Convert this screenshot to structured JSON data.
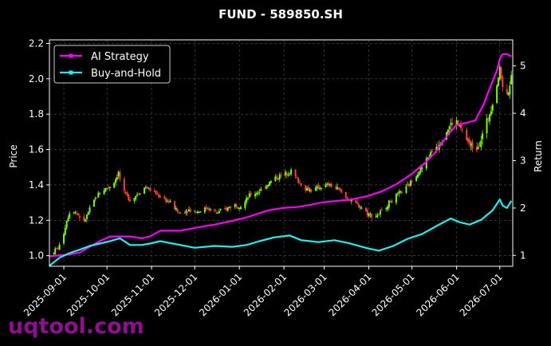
{
  "chart_data": {
    "type": "line",
    "title": "FUND - 589850.SH",
    "ylabel": "Price",
    "y2label": "Return",
    "ylim": [
      0.94,
      2.22
    ],
    "y2lim": [
      0.77,
      5.55
    ],
    "yticks": [
      "1.0",
      "1.2",
      "1.4",
      "1.6",
      "1.8",
      "2.0",
      "2.2"
    ],
    "y2ticks": [
      "1",
      "2",
      "3",
      "4",
      "5"
    ],
    "xlim": [
      "2025-08-22",
      "2026-07-10"
    ],
    "xticks": [
      "2025-09-01",
      "2025-10-01",
      "2025-11-01",
      "2025-12-01",
      "2026-01-01",
      "2026-02-01",
      "2026-03-01",
      "2026-04-01",
      "2026-05-01",
      "2026-06-01",
      "2026-07-01"
    ],
    "grid": true,
    "legend_position": "top-left",
    "legend": [
      {
        "name": "AI Strategy",
        "color": "#ff00ff"
      },
      {
        "name": "Buy-and-Hold",
        "color": "#22eeee"
      }
    ],
    "candles": {
      "up_color": "#7cfc00",
      "down_color": "#ff4040",
      "price_path": [
        [
          "2025-08-23",
          1.01
        ],
        [
          "2025-08-30",
          1.06
        ],
        [
          "2025-09-03",
          1.2
        ],
        [
          "2025-09-06",
          1.27
        ],
        [
          "2025-09-10",
          1.24
        ],
        [
          "2025-09-15",
          1.19
        ],
        [
          "2025-09-20",
          1.28
        ],
        [
          "2025-09-25",
          1.35
        ],
        [
          "2025-09-30",
          1.38
        ],
        [
          "2025-10-05",
          1.4
        ],
        [
          "2025-10-09",
          1.47
        ],
        [
          "2025-10-12",
          1.36
        ],
        [
          "2025-10-18",
          1.31
        ],
        [
          "2025-10-22",
          1.35
        ],
        [
          "2025-10-28",
          1.39
        ],
        [
          "2025-11-02",
          1.36
        ],
        [
          "2025-11-08",
          1.33
        ],
        [
          "2025-11-14",
          1.3
        ],
        [
          "2025-11-20",
          1.24
        ],
        [
          "2025-11-26",
          1.26
        ],
        [
          "2025-12-03",
          1.25
        ],
        [
          "2025-12-10",
          1.27
        ],
        [
          "2025-12-16",
          1.24
        ],
        [
          "2025-12-22",
          1.26
        ],
        [
          "2025-12-28",
          1.29
        ],
        [
          "2026-01-03",
          1.28
        ],
        [
          "2026-01-08",
          1.34
        ],
        [
          "2026-01-14",
          1.36
        ],
        [
          "2026-01-20",
          1.4
        ],
        [
          "2026-01-26",
          1.44
        ],
        [
          "2026-02-01",
          1.46
        ],
        [
          "2026-02-06",
          1.48
        ],
        [
          "2026-02-11",
          1.42
        ],
        [
          "2026-02-16",
          1.38
        ],
        [
          "2026-02-21",
          1.37
        ],
        [
          "2026-02-27",
          1.39
        ],
        [
          "2026-03-04",
          1.4
        ],
        [
          "2026-03-10",
          1.38
        ],
        [
          "2026-03-16",
          1.33
        ],
        [
          "2026-03-21",
          1.3
        ],
        [
          "2026-03-26",
          1.28
        ],
        [
          "2026-03-31",
          1.24
        ],
        [
          "2026-04-05",
          1.22
        ],
        [
          "2026-04-10",
          1.25
        ],
        [
          "2026-04-15",
          1.3
        ],
        [
          "2026-04-22",
          1.35
        ],
        [
          "2026-04-28",
          1.39
        ],
        [
          "2026-05-03",
          1.45
        ],
        [
          "2026-05-08",
          1.5
        ],
        [
          "2026-05-14",
          1.58
        ],
        [
          "2026-05-20",
          1.64
        ],
        [
          "2026-05-26",
          1.72
        ],
        [
          "2026-05-31",
          1.77
        ],
        [
          "2026-06-05",
          1.7
        ],
        [
          "2026-06-10",
          1.63
        ],
        [
          "2026-06-14",
          1.6
        ],
        [
          "2026-06-18",
          1.66
        ],
        [
          "2026-06-23",
          1.78
        ],
        [
          "2026-06-27",
          1.9
        ],
        [
          "2026-07-01",
          2.05
        ],
        [
          "2026-07-03",
          1.97
        ],
        [
          "2026-07-05",
          1.86
        ],
        [
          "2026-07-07",
          1.94
        ],
        [
          "2026-07-09",
          2.0
        ]
      ]
    },
    "series": [
      {
        "name": "AI Strategy",
        "color": "#ff00ff",
        "axis": "right",
        "points": [
          [
            "2025-08-22",
            0.98
          ],
          [
            "2025-08-29",
            1.0
          ],
          [
            "2025-09-05",
            1.02
          ],
          [
            "2025-09-12",
            1.06
          ],
          [
            "2025-09-19",
            1.18
          ],
          [
            "2025-09-26",
            1.3
          ],
          [
            "2025-10-03",
            1.4
          ],
          [
            "2025-10-17",
            1.4
          ],
          [
            "2025-10-25",
            1.36
          ],
          [
            "2025-10-31",
            1.4
          ],
          [
            "2025-11-07",
            1.52
          ],
          [
            "2025-11-21",
            1.52
          ],
          [
            "2025-12-01",
            1.58
          ],
          [
            "2025-12-15",
            1.65
          ],
          [
            "2025-12-27",
            1.73
          ],
          [
            "2026-01-06",
            1.8
          ],
          [
            "2026-01-13",
            1.87
          ],
          [
            "2026-01-21",
            1.95
          ],
          [
            "2026-01-31",
            2.0
          ],
          [
            "2026-02-10",
            2.02
          ],
          [
            "2026-02-18",
            2.06
          ],
          [
            "2026-02-28",
            2.12
          ],
          [
            "2026-03-10",
            2.15
          ],
          [
            "2026-03-20",
            2.18
          ],
          [
            "2026-03-31",
            2.25
          ],
          [
            "2026-04-10",
            2.35
          ],
          [
            "2026-04-20",
            2.5
          ],
          [
            "2026-04-30",
            2.7
          ],
          [
            "2026-05-10",
            2.95
          ],
          [
            "2026-05-18",
            3.2
          ],
          [
            "2026-05-26",
            3.55
          ],
          [
            "2026-06-01",
            3.75
          ],
          [
            "2026-06-08",
            3.8
          ],
          [
            "2026-06-14",
            3.85
          ],
          [
            "2026-06-20",
            4.2
          ],
          [
            "2026-06-25",
            4.6
          ],
          [
            "2026-06-29",
            4.9
          ],
          [
            "2026-07-01",
            5.15
          ],
          [
            "2026-07-03",
            5.25
          ],
          [
            "2026-07-06",
            5.25
          ],
          [
            "2026-07-09",
            5.2
          ]
        ]
      },
      {
        "name": "Buy-and-Hold",
        "color": "#22eeee",
        "axis": "right",
        "points": [
          [
            "2025-08-22",
            0.78
          ],
          [
            "2025-08-29",
            0.95
          ],
          [
            "2025-09-05",
            1.05
          ],
          [
            "2025-09-12",
            1.12
          ],
          [
            "2025-09-19",
            1.2
          ],
          [
            "2025-09-26",
            1.25
          ],
          [
            "2025-10-03",
            1.3
          ],
          [
            "2025-10-10",
            1.36
          ],
          [
            "2025-10-17",
            1.22
          ],
          [
            "2025-10-25",
            1.22
          ],
          [
            "2025-10-31",
            1.25
          ],
          [
            "2025-11-07",
            1.3
          ],
          [
            "2025-11-21",
            1.22
          ],
          [
            "2025-12-01",
            1.16
          ],
          [
            "2025-12-15",
            1.2
          ],
          [
            "2025-12-27",
            1.18
          ],
          [
            "2026-01-06",
            1.22
          ],
          [
            "2026-01-15",
            1.3
          ],
          [
            "2026-01-25",
            1.38
          ],
          [
            "2026-02-05",
            1.42
          ],
          [
            "2026-02-13",
            1.32
          ],
          [
            "2026-02-25",
            1.28
          ],
          [
            "2026-03-08",
            1.32
          ],
          [
            "2026-03-18",
            1.26
          ],
          [
            "2026-03-31",
            1.15
          ],
          [
            "2026-04-08",
            1.1
          ],
          [
            "2026-04-18",
            1.2
          ],
          [
            "2026-04-28",
            1.35
          ],
          [
            "2026-05-08",
            1.45
          ],
          [
            "2026-05-18",
            1.62
          ],
          [
            "2026-05-28",
            1.78
          ],
          [
            "2026-06-03",
            1.7
          ],
          [
            "2026-06-10",
            1.65
          ],
          [
            "2026-06-18",
            1.75
          ],
          [
            "2026-06-26",
            1.95
          ],
          [
            "2026-07-01",
            2.18
          ],
          [
            "2026-07-03",
            2.05
          ],
          [
            "2026-07-06",
            2.0
          ],
          [
            "2026-07-09",
            2.15
          ]
        ]
      }
    ]
  },
  "watermark": "uqtool.com"
}
